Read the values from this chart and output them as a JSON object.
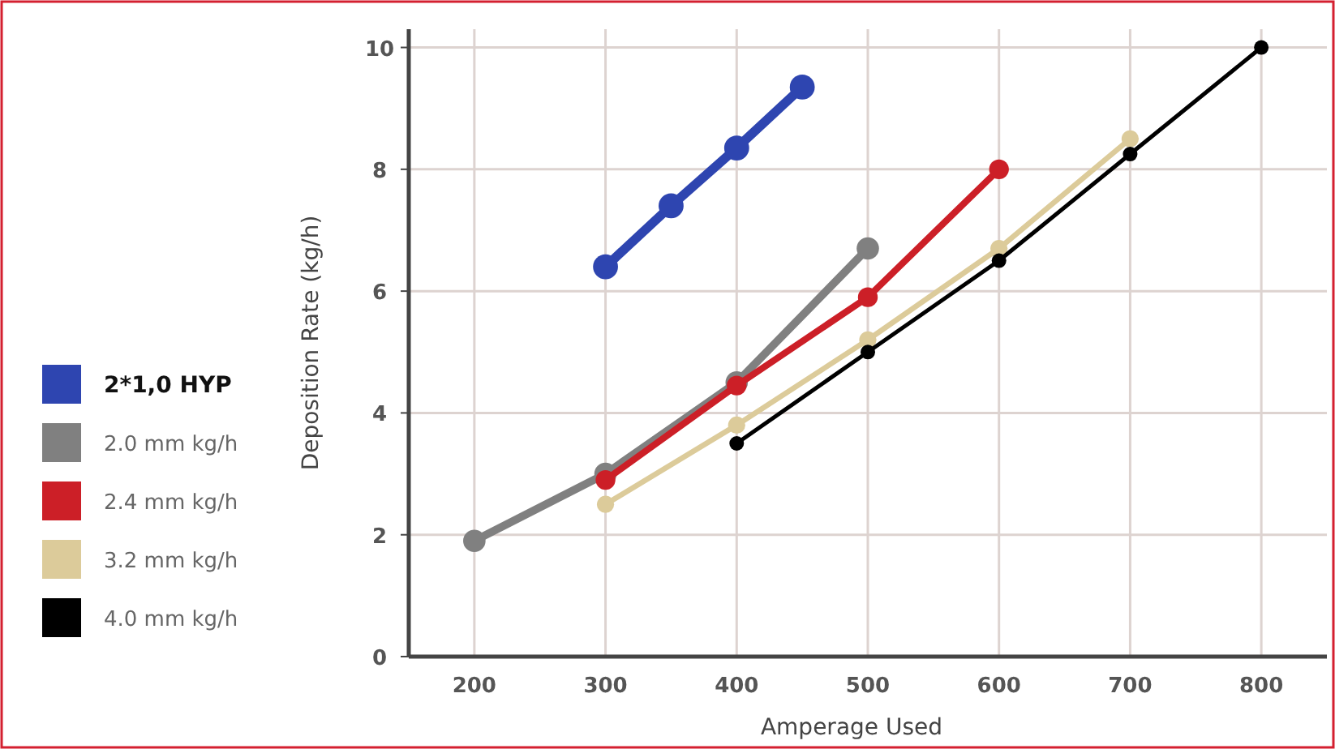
{
  "chart_data": {
    "type": "line",
    "xlabel": "Amperage Used",
    "ylabel": "Deposition Rate (kg/h)",
    "xlim": [
      150,
      850
    ],
    "xticks": [
      200,
      300,
      400,
      500,
      600,
      700,
      800
    ],
    "ylim": [
      0,
      10.3
    ],
    "yticks": [
      0,
      2,
      4,
      6,
      8,
      10
    ],
    "grid": true,
    "legend": "left",
    "marker": "circle",
    "line_style": "solid",
    "series": [
      {
        "name": "2*1,0 HYP",
        "color": "#2e45b0",
        "x": [
          300,
          350,
          400,
          450
        ],
        "values": [
          6.4,
          7.4,
          8.35,
          9.35
        ]
      },
      {
        "name": "2.0 mm kg/h",
        "color": "#808080",
        "x": [
          200,
          300,
          400,
          500
        ],
        "values": [
          1.9,
          3.0,
          4.5,
          6.7
        ]
      },
      {
        "name": "2.4 mm kg/h",
        "color": "#cc1f27",
        "x": [
          300,
          400,
          500,
          600
        ],
        "values": [
          2.9,
          4.45,
          5.9,
          8.0
        ]
      },
      {
        "name": "3.2 mm kg/h",
        "color": "#dccb9a",
        "x": [
          300,
          400,
          500,
          600,
          700
        ],
        "values": [
          2.5,
          3.8,
          5.2,
          6.7,
          8.5
        ]
      },
      {
        "name": "4.0 mm kg/h",
        "color": "#000000",
        "x": [
          400,
          500,
          600,
          700,
          800
        ],
        "values": [
          3.5,
          5.0,
          6.5,
          8.25,
          10.0
        ]
      }
    ]
  }
}
